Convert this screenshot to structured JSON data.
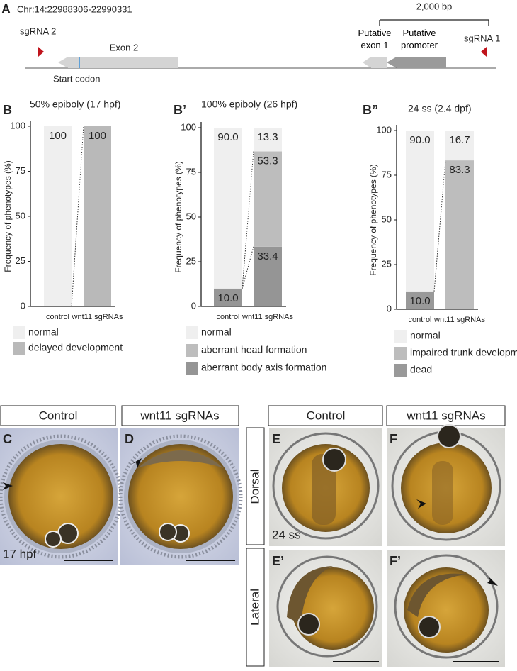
{
  "panel_a": {
    "letter": "A",
    "locus": "Chr:14:22988306-22990331",
    "scale": "2,000 bp",
    "sgrna2": "sgRNA 2",
    "exon2": "Exon 2",
    "start_codon": "Start codon",
    "exon1": "Putative exon 1",
    "promoter": "Putative promoter",
    "sgrna1": "sgRNA 1"
  },
  "chart_data": [
    {
      "type": "bar",
      "stacked": true,
      "panel": "B",
      "title": "50% epiboly (17 hpf)",
      "y_label": "Frequency of phenotypes (%)",
      "categories": [
        "control",
        "wnt11 sgRNAs"
      ],
      "ylim": [
        0,
        100
      ],
      "yticks": [
        0,
        25,
        50,
        75,
        100
      ],
      "series": [
        {
          "name": "normal",
          "color": "#efefef",
          "values": [
            100,
            0
          ]
        },
        {
          "name": "delayed development",
          "color": "#b9b9b9",
          "values": [
            0,
            100
          ]
        }
      ]
    },
    {
      "type": "bar",
      "stacked": true,
      "panel": "B’",
      "title": "100% epiboly (26 hpf)",
      "y_label": "Frequency of phenotypes (%)",
      "categories": [
        "control",
        "wnt11 sgRNAs"
      ],
      "ylim": [
        0,
        100
      ],
      "yticks": [
        0,
        25,
        50,
        75,
        100
      ],
      "series": [
        {
          "name": "normal",
          "color": "#efefef",
          "values": [
            90,
            13.3
          ],
          "value_labels": [
            "90.0",
            "13.3"
          ]
        },
        {
          "name": "aberrant head formation",
          "color": "#bdbdbd",
          "values": [
            0,
            53.3
          ],
          "value_labels": [
            null,
            "53.3"
          ]
        },
        {
          "name": "aberrant body axis formation",
          "color": "#959595",
          "values": [
            10,
            33.4
          ],
          "value_labels": [
            "10.0",
            "33.4"
          ]
        }
      ]
    },
    {
      "type": "bar",
      "stacked": true,
      "panel": "B”",
      "title": "24 ss (2.4 dpf)",
      "y_label": "Frequency of phenotypes (%)",
      "categories": [
        "control",
        "wnt11 sgRNAs"
      ],
      "ylim": [
        0,
        100
      ],
      "yticks": [
        0,
        25,
        50,
        75,
        100
      ],
      "series": [
        {
          "name": "normal",
          "color": "#efefef",
          "values": [
            90,
            16.7
          ],
          "value_labels": [
            "90.0",
            "16.7"
          ]
        },
        {
          "name": "impaired trunk development",
          "color": "#bdbdbd",
          "values": [
            0,
            83.3
          ],
          "value_labels": [
            null,
            "83.3"
          ]
        },
        {
          "name": "dead",
          "color": "#999999",
          "values": [
            10,
            0
          ],
          "value_labels": [
            "10.0",
            null
          ]
        }
      ]
    }
  ],
  "images": {
    "headers": [
      "Control",
      "wnt11 sgRNAs",
      "Control",
      "wnt11 sgRNAs"
    ],
    "letters": [
      "C",
      "D",
      "E",
      "F",
      "E’",
      "F’"
    ],
    "stage_c": "17 hpf",
    "stage_e": "24 ss",
    "dorsal": "Dorsal",
    "lateral": "Lateral"
  }
}
